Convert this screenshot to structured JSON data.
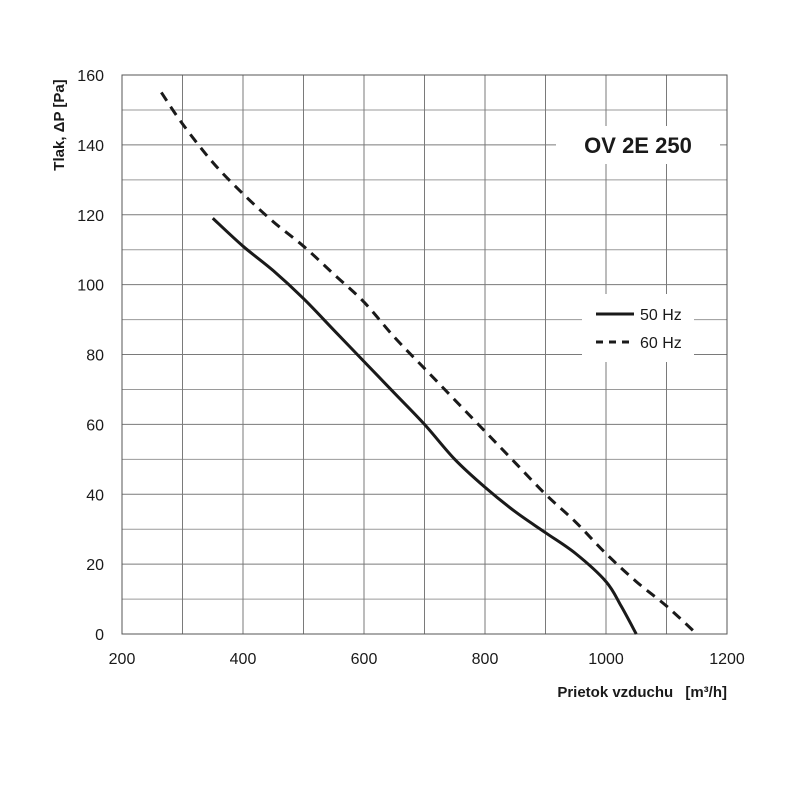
{
  "chart_data": {
    "type": "line",
    "title": "OV 2E 250",
    "xlabel": "Prietok vzduchu",
    "xlabel_unit": "[m³/h]",
    "ylabel": "Tlak, ΔP [Pa]",
    "xlim": [
      200,
      1200
    ],
    "ylim": [
      0,
      160
    ],
    "x_ticks": [
      "200",
      "400",
      "600",
      "800",
      "1000",
      "1200"
    ],
    "y_ticks": [
      "0",
      "20",
      "40",
      "60",
      "80",
      "100",
      "120",
      "140",
      "160"
    ],
    "grid": true,
    "legend_position": "right",
    "series": [
      {
        "name": "50 Hz",
        "style": "solid",
        "color": "#1a1a1a",
        "points": [
          [
            350,
            119
          ],
          [
            400,
            111
          ],
          [
            450,
            104
          ],
          [
            500,
            96
          ],
          [
            550,
            87
          ],
          [
            600,
            78
          ],
          [
            650,
            69
          ],
          [
            700,
            60
          ],
          [
            750,
            50
          ],
          [
            800,
            42
          ],
          [
            850,
            35
          ],
          [
            900,
            29
          ],
          [
            950,
            23
          ],
          [
            1000,
            15
          ],
          [
            1025,
            8
          ],
          [
            1050,
            0
          ]
        ]
      },
      {
        "name": "60 Hz",
        "style": "dashed",
        "color": "#1a1a1a",
        "points": [
          [
            265,
            155
          ],
          [
            300,
            146
          ],
          [
            350,
            135
          ],
          [
            400,
            126
          ],
          [
            450,
            118
          ],
          [
            500,
            111
          ],
          [
            550,
            103
          ],
          [
            600,
            95
          ],
          [
            650,
            85
          ],
          [
            700,
            76
          ],
          [
            750,
            67
          ],
          [
            800,
            58
          ],
          [
            850,
            49
          ],
          [
            900,
            40
          ],
          [
            950,
            32
          ],
          [
            1000,
            23
          ],
          [
            1050,
            15
          ],
          [
            1100,
            8
          ],
          [
            1150,
            0
          ]
        ]
      }
    ]
  }
}
